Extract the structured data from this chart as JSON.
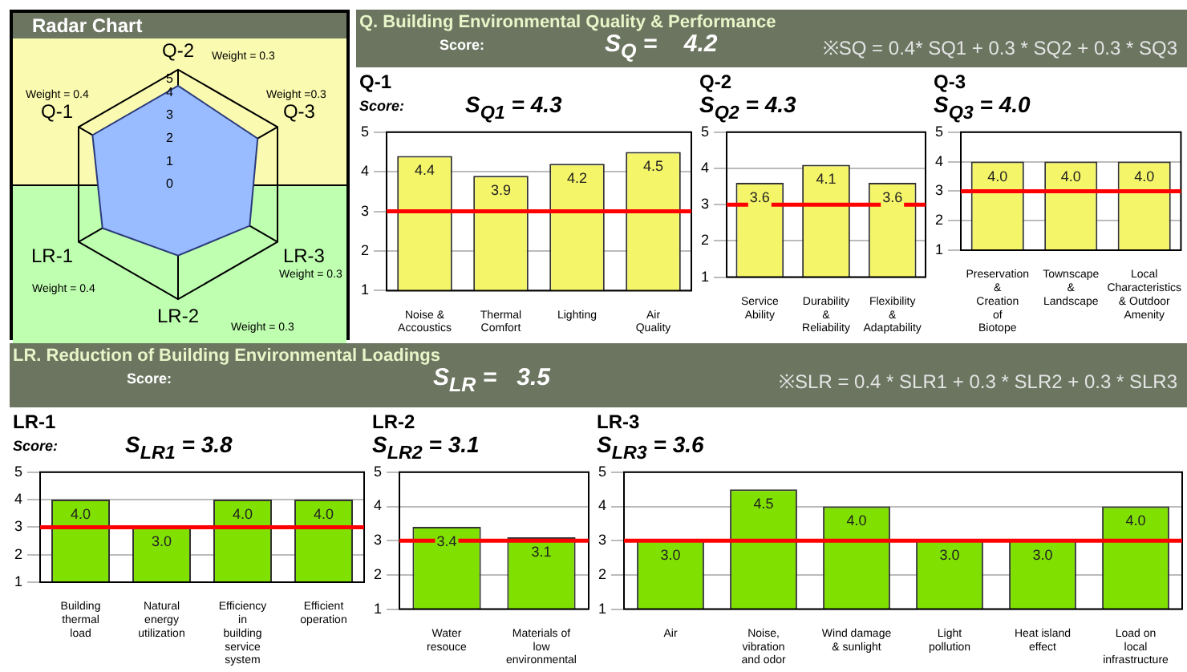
{
  "chart_data": [
    {
      "type": "radar",
      "title": "Radar Chart",
      "categories": [
        "Q-2",
        "Q-3",
        "LR-3",
        "LR-2",
        "LR-1",
        "Q-1"
      ],
      "values": [
        4.3,
        4.0,
        3.6,
        3.1,
        3.8,
        4.3
      ],
      "color": "#99bbff",
      "ylim": [
        0,
        5
      ],
      "yticks": [
        0,
        1,
        2,
        3,
        4,
        5
      ],
      "marker": "none",
      "annotations": [
        "Weight = 0.3",
        "Weight =0.3",
        "Weight = 0.3",
        "Weight = 0.3",
        "Weight = 0.4",
        "Weight = 0.4"
      ]
    },
    {
      "type": "other",
      "title": "Q. Building Environmental Quality & Performance",
      "annotations": [
        "Score:",
        "S$_{Q}$ =    4.2",
        "※SQ = 0.4* SQ1 + 0.3 * SQ2 + 0.3 * SQ3"
      ]
    },
    {
      "type": "bar",
      "title": "Q-1",
      "subtitle": "Score:",
      "annotations": [
        "S$_{Q1}$ = 4.3"
      ],
      "categories": [
        "Noise & Accoustics",
        "Thermal Comfort",
        "Lighting",
        "Air Quality"
      ],
      "values": [
        4.4,
        3.9,
        4.2,
        4.5
      ],
      "value_labels": [
        "4.4",
        "3.9",
        "4.2",
        "4.5"
      ],
      "color": "#f5f56a",
      "ylim": [
        1,
        5
      ],
      "yticks": [
        1,
        2,
        3,
        4,
        5
      ],
      "grid": "y",
      "ref_lines": [
        {
          "axis": "y",
          "value": 3,
          "color": "#ff0000"
        }
      ]
    },
    {
      "type": "bar",
      "title": "Q-2",
      "annotations": [
        "S$_{Q2}$ = 4.3"
      ],
      "categories": [
        "Service Ability",
        "Durability & Reliability",
        "Flexibility & Adaptability"
      ],
      "values": [
        3.6,
        4.1,
        3.6
      ],
      "value_labels": [
        "3.6",
        "4.1",
        "3.6"
      ],
      "color": "#f5f56a",
      "ylim": [
        1,
        5
      ],
      "yticks": [
        1,
        2,
        3,
        4,
        5
      ],
      "grid": "y",
      "ref_lines": [
        {
          "axis": "y",
          "value": 3,
          "color": "#ff0000"
        }
      ]
    },
    {
      "type": "bar",
      "title": "Q-3",
      "annotations": [
        "S$_{Q3}$ = 4.0"
      ],
      "categories": [
        "Preservation & Creation of Biotope",
        "Townscape & Landscape",
        "Local Characteristics & Outdoor Amenity"
      ],
      "values": [
        4.0,
        4.0,
        4.0
      ],
      "value_labels": [
        "4.0",
        "4.0",
        "4.0"
      ],
      "color": "#f5f56a",
      "ylim": [
        1,
        5
      ],
      "yticks": [
        1,
        2,
        3,
        4,
        5
      ],
      "grid": "y",
      "ref_lines": [
        {
          "axis": "y",
          "value": 3,
          "color": "#ff0000"
        }
      ]
    },
    {
      "type": "other",
      "title": "LR. Reduction of Building Environmental Loadings",
      "annotations": [
        "Score:",
        "S$_{LR}$ =   3.5",
        "※SLR = 0.4 * SLR1 + 0.3 * SLR2 + 0.3 * SLR3"
      ]
    },
    {
      "type": "bar",
      "title": "LR-1",
      "subtitle": "Score:",
      "annotations": [
        "S$_{LR1}$ = 3.8"
      ],
      "categories": [
        "Building thermal load",
        "Natural energy utilization",
        "Efficiency in building service system",
        "Efficient operation"
      ],
      "values": [
        4.0,
        3.0,
        4.0,
        4.0
      ],
      "value_labels": [
        "4.0",
        "3.0",
        "4.0",
        "4.0"
      ],
      "color": "#80e000",
      "ylim": [
        1,
        5
      ],
      "yticks": [
        1,
        2,
        3,
        4,
        5
      ],
      "grid": "y",
      "ref_lines": [
        {
          "axis": "y",
          "value": 3,
          "color": "#ff0000"
        }
      ]
    },
    {
      "type": "bar",
      "title": "LR-2",
      "annotations": [
        "S$_{LR2}$ = 3.1"
      ],
      "categories": [
        "Water resouce",
        "Materials of low environmental"
      ],
      "values": [
        3.4,
        3.1
      ],
      "value_labels": [
        "3.4",
        "3.1"
      ],
      "color": "#80e000",
      "ylim": [
        1,
        5
      ],
      "yticks": [
        1,
        2,
        3,
        4,
        5
      ],
      "grid": "y",
      "ref_lines": [
        {
          "axis": "y",
          "value": 3,
          "color": "#ff0000"
        }
      ]
    },
    {
      "type": "bar",
      "title": "LR-3",
      "annotations": [
        "S$_{LR3}$ = 3.6"
      ],
      "categories": [
        "Air",
        "Noise, vibration and odor",
        "Wind damage & sunlight",
        "Light pollution",
        "Heat island effect",
        "Load on local infrastructure"
      ],
      "values": [
        3.0,
        4.5,
        4.0,
        3.0,
        3.0,
        4.0
      ],
      "value_labels": [
        "3.0",
        "4.5",
        "4.0",
        "3.0",
        "3.0",
        "4.0"
      ],
      "color": "#80e000",
      "ylim": [
        1,
        5
      ],
      "yticks": [
        1,
        2,
        3,
        4,
        5
      ],
      "grid": "y",
      "ref_lines": [
        {
          "axis": "y",
          "value": 3,
          "color": "#ff0000"
        }
      ]
    }
  ]
}
